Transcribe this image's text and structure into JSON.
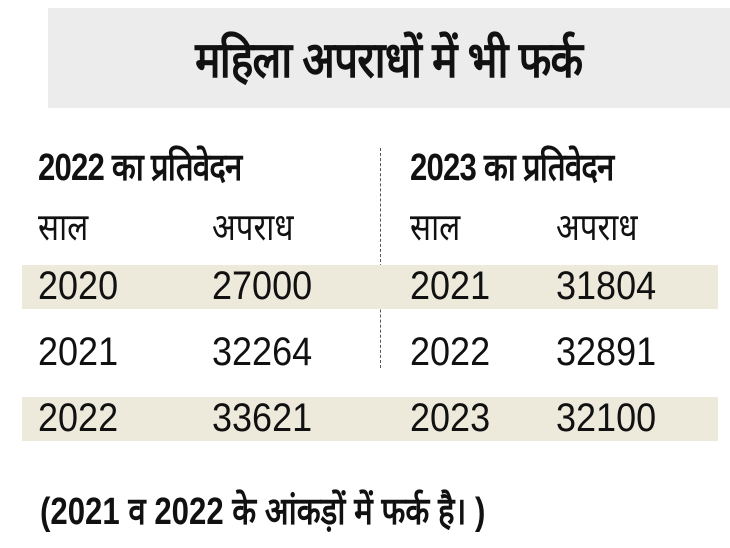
{
  "title": "महिला अपराधों में भी फर्क",
  "chart_data": {
    "type": "table",
    "title": "महिला अपराधों में भी फर्क",
    "tables": [
      {
        "heading": "2022 का प्रतिवेदन",
        "columns": [
          "साल",
          "अपराध"
        ],
        "rows": [
          [
            "2020",
            "27000"
          ],
          [
            "2021",
            "32264"
          ],
          [
            "2022",
            "33621"
          ]
        ]
      },
      {
        "heading": "2023 का प्रतिवेदन",
        "columns": [
          "साल",
          "अपराध"
        ],
        "rows": [
          [
            "2021",
            "31804"
          ],
          [
            "2022",
            "32891"
          ],
          [
            "2023",
            "32100"
          ]
        ]
      }
    ],
    "note": "(2021 व 2022 के आंकड़ों में फर्क है। )"
  },
  "colors": {
    "title_bg": "#ececec",
    "band": "#eeeadb"
  }
}
